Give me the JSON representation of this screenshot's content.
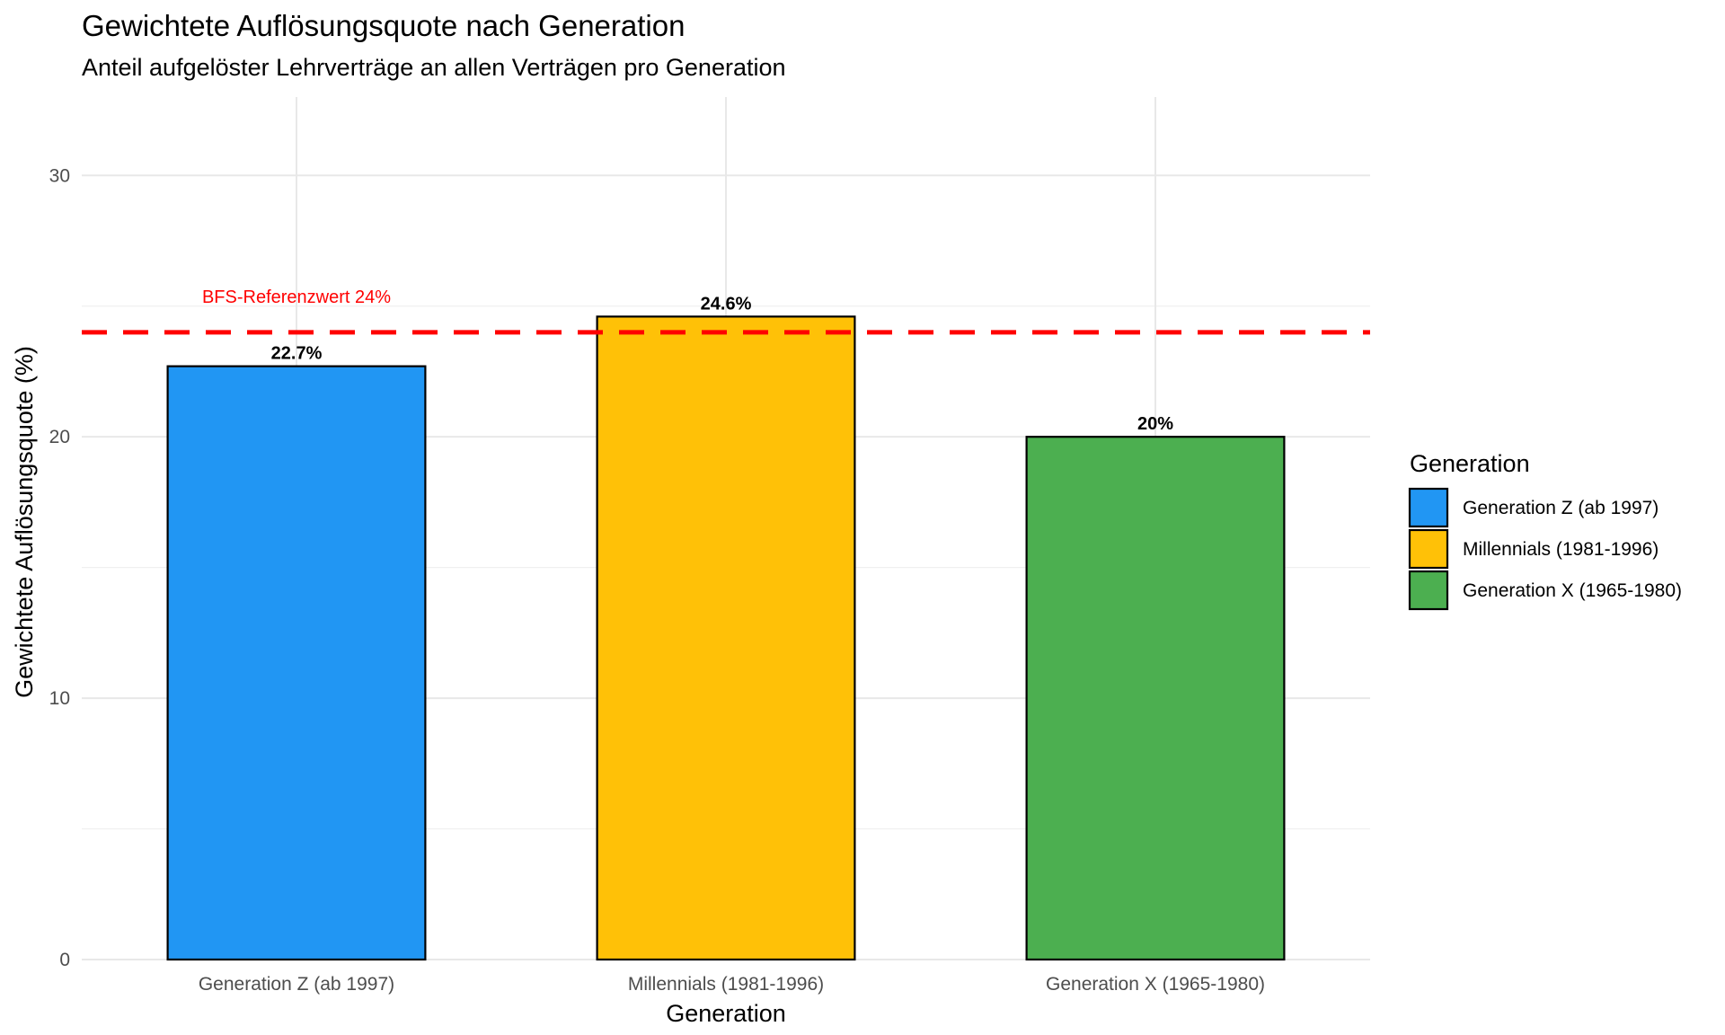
{
  "chart_data": {
    "type": "bar",
    "title": "Gewichtete Auflösungsquote nach Generation",
    "subtitle": "Anteil aufgelöster Lehrverträge an allen Verträgen pro Generation",
    "xlabel": "Generation",
    "ylabel": "Gewichtete Auflösungsquote (%)",
    "categories": [
      "Generation Z (ab 1997)",
      "Millennials (1981-1996)",
      "Generation X (1965-1980)"
    ],
    "values": [
      22.7,
      24.6,
      20
    ],
    "data_labels": [
      "22.7%",
      "24.6%",
      "20%"
    ],
    "colors": [
      "#2196F3",
      "#FFC107",
      "#4CAF50"
    ],
    "ylim": [
      0,
      33
    ],
    "yticks": [
      0,
      10,
      20,
      30
    ],
    "grid": true,
    "legend": {
      "title": "Generation",
      "position": "right",
      "entries": [
        "Generation Z (ab 1997)",
        "Millennials (1981-1996)",
        "Generation X (1965-1980)"
      ]
    },
    "reference_line": {
      "value": 24,
      "label": "BFS-Referenzwert 24%",
      "color": "#FF0000",
      "style": "dashed"
    }
  }
}
